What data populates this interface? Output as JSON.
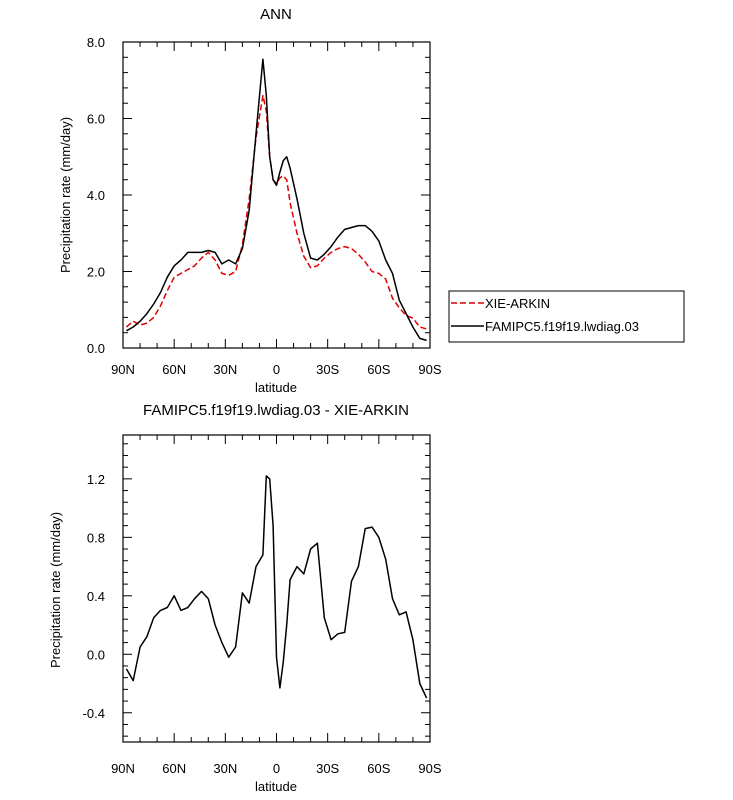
{
  "chart_data": [
    {
      "type": "line",
      "title": "ANN",
      "xlabel": "latitude",
      "ylabel": "Precipitation rate (mm/day)",
      "xlim": [
        90,
        -90
      ],
      "ylim": [
        0,
        8
      ],
      "xticks": [
        90,
        60,
        30,
        0,
        -30,
        -60,
        -90
      ],
      "xtick_labels": [
        "90N",
        "60N",
        "30N",
        "0",
        "30S",
        "60S",
        "90S"
      ],
      "yticks": [
        0,
        2,
        4,
        6,
        8
      ],
      "ytick_labels": [
        "0.0",
        "2.0",
        "4.0",
        "6.0",
        "8.0"
      ],
      "legend_position": "right",
      "x": [
        88,
        84,
        80,
        76,
        72,
        68,
        64,
        60,
        56,
        52,
        48,
        44,
        40,
        36,
        32,
        28,
        24,
        20,
        16,
        12,
        8,
        6,
        4,
        2,
        0,
        -2,
        -4,
        -6,
        -8,
        -12,
        -16,
        -20,
        -24,
        -28,
        -32,
        -36,
        -40,
        -44,
        -48,
        -52,
        -56,
        -60,
        -64,
        -68,
        -72,
        -76,
        -80,
        -84,
        -88
      ],
      "series": [
        {
          "name": "XIE-ARKIN",
          "color": "#e00000",
          "style": "dashed",
          "values": [
            0.55,
            0.7,
            0.6,
            0.65,
            0.8,
            1.1,
            1.5,
            1.85,
            1.95,
            2.05,
            2.15,
            2.35,
            2.5,
            2.3,
            1.95,
            1.9,
            2.0,
            2.7,
            3.9,
            5.5,
            6.6,
            6.2,
            5.0,
            4.4,
            4.3,
            4.45,
            4.5,
            4.4,
            3.8,
            3.0,
            2.4,
            2.1,
            2.15,
            2.35,
            2.5,
            2.6,
            2.65,
            2.6,
            2.45,
            2.25,
            2.0,
            1.95,
            1.8,
            1.3,
            1.05,
            0.85,
            0.78,
            0.55,
            0.5
          ]
        },
        {
          "name": "FAMIPC5.f19f19.lwdiag.03",
          "color": "#000000",
          "style": "solid",
          "values": [
            0.45,
            0.55,
            0.7,
            0.9,
            1.15,
            1.45,
            1.85,
            2.15,
            2.3,
            2.5,
            2.5,
            2.5,
            2.55,
            2.5,
            2.2,
            2.3,
            2.2,
            2.6,
            3.6,
            5.6,
            7.55,
            6.6,
            5.0,
            4.4,
            4.25,
            4.6,
            4.9,
            5.0,
            4.7,
            3.9,
            3.0,
            2.35,
            2.3,
            2.45,
            2.65,
            2.9,
            3.1,
            3.15,
            3.2,
            3.2,
            3.05,
            2.8,
            2.3,
            1.95,
            1.25,
            0.9,
            0.55,
            0.25,
            0.2
          ]
        }
      ]
    },
    {
      "type": "line",
      "title": "FAMIPC5.f19f19.lwdiag.03 - XIE-ARKIN",
      "xlabel": "latitude",
      "ylabel": "Precipitation rate (mm/day)",
      "xlim": [
        90,
        -90
      ],
      "ylim": [
        -0.6,
        1.5
      ],
      "xticks": [
        90,
        60,
        30,
        0,
        -30,
        -60,
        -90
      ],
      "xtick_labels": [
        "90N",
        "60N",
        "30N",
        "0",
        "30S",
        "60S",
        "90S"
      ],
      "yticks": [
        -0.4,
        0,
        0.4,
        0.8,
        1.2
      ],
      "ytick_labels": [
        "-0.4",
        "0.0",
        "0.4",
        "0.8",
        "1.2"
      ],
      "x": [
        88,
        84,
        80,
        76,
        72,
        68,
        64,
        60,
        56,
        52,
        48,
        44,
        40,
        36,
        32,
        28,
        24,
        20,
        16,
        12,
        8,
        6,
        4,
        2,
        0,
        -2,
        -4,
        -6,
        -8,
        -12,
        -16,
        -20,
        -24,
        -28,
        -32,
        -36,
        -40,
        -44,
        -48,
        -52,
        -56,
        -60,
        -64,
        -68,
        -72,
        -76,
        -80,
        -84,
        -88
      ],
      "series": [
        {
          "color": "#000000",
          "values": [
            -0.1,
            -0.18,
            0.05,
            0.12,
            0.25,
            0.3,
            0.32,
            0.4,
            0.3,
            0.32,
            0.38,
            0.43,
            0.38,
            0.2,
            0.08,
            -0.02,
            0.05,
            0.42,
            0.35,
            0.6,
            0.68,
            1.22,
            1.2,
            0.88,
            -0.02,
            -0.23,
            -0.05,
            0.2,
            0.51,
            0.6,
            0.55,
            0.72,
            0.76,
            0.25,
            0.1,
            0.14,
            0.15,
            0.5,
            0.6,
            0.86,
            0.87,
            0.8,
            0.65,
            0.38,
            0.27,
            0.29,
            0.1,
            -0.2,
            -0.3
          ]
        }
      ]
    }
  ]
}
